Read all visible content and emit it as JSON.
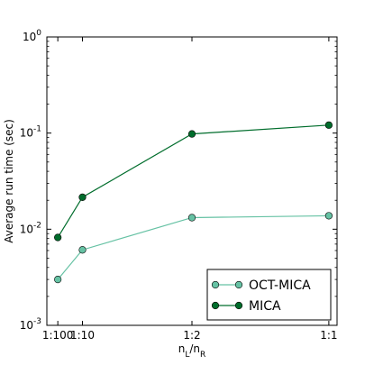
{
  "chart_data": {
    "type": "line",
    "xlabel": "",
    "xlabel_main": "n",
    "xlabel_sub_L": "L",
    "xlabel_sep": "/n",
    "xlabel_sub_R": "R",
    "ylabel": "Average run time (sec)",
    "ylog": true,
    "ylim": [
      0.001,
      1
    ],
    "y_ticks": [
      {
        "base": "10",
        "exp": "-3",
        "value": 0.001
      },
      {
        "base": "10",
        "exp": "-2",
        "value": 0.01
      },
      {
        "base": "10",
        "exp": "-1",
        "value": 0.1
      },
      {
        "base": "10",
        "exp": "0",
        "value": 1
      }
    ],
    "x_values": [
      0.01,
      0.1,
      0.5,
      1.0
    ],
    "x_tick_labels": [
      "1:100",
      "1:10",
      "1:2",
      "1:1"
    ],
    "xlim": [
      -0.03,
      1.03
    ],
    "grid": false,
    "legend_placement": "lower-right",
    "series": [
      {
        "name": "OCT-MICA",
        "values": [
          0.003,
          0.0061,
          0.0132,
          0.0138
        ],
        "color": "#66c2a4"
      },
      {
        "name": "MICA",
        "values": [
          0.0082,
          0.0215,
          0.098,
          0.121
        ],
        "color": "#006d2c"
      }
    ]
  }
}
